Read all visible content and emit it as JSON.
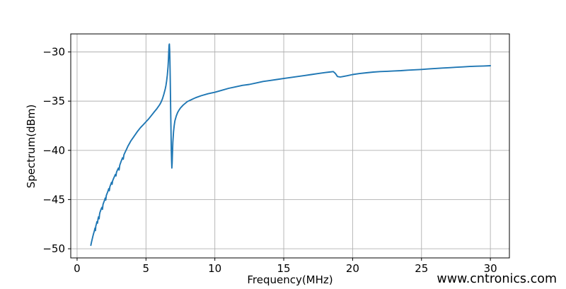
{
  "page": {
    "background": "#ffffff"
  },
  "watermark": {
    "text": "www.cntronics.com",
    "color": "#b7e3b6"
  },
  "chart_data": {
    "type": "line",
    "title": "",
    "xlabel": "Frequency(MHz)",
    "ylabel": "Spectrum(dBm)",
    "xlim": [
      -0.46,
      31.38
    ],
    "ylim": [
      -50.93,
      -28.17
    ],
    "x_ticks": [
      0,
      5,
      10,
      15,
      20,
      25,
      30
    ],
    "y_ticks": [
      -30,
      -35,
      -40,
      -45,
      -50
    ],
    "grid": true,
    "legend": "none",
    "line_color": "#1f77b4",
    "grid_color": "#b0b0b0",
    "spine_color": "#000000",
    "series": [
      {
        "name": "spectrum",
        "points": [
          [
            1.0,
            -49.65
          ],
          [
            1.05,
            -49.3
          ],
          [
            1.1,
            -49.0
          ],
          [
            1.15,
            -48.7
          ],
          [
            1.2,
            -48.45
          ],
          [
            1.25,
            -48.2
          ],
          [
            1.3,
            -47.9
          ],
          [
            1.33,
            -48.15
          ],
          [
            1.36,
            -47.7
          ],
          [
            1.4,
            -47.5
          ],
          [
            1.44,
            -47.25
          ],
          [
            1.48,
            -47.4
          ],
          [
            1.52,
            -46.95
          ],
          [
            1.56,
            -46.75
          ],
          [
            1.6,
            -46.95
          ],
          [
            1.63,
            -46.5
          ],
          [
            1.66,
            -46.3
          ],
          [
            1.7,
            -46.15
          ],
          [
            1.75,
            -45.95
          ],
          [
            1.8,
            -45.8
          ],
          [
            1.84,
            -46.0
          ],
          [
            1.88,
            -45.5
          ],
          [
            1.92,
            -45.35
          ],
          [
            1.96,
            -45.2
          ],
          [
            2.0,
            -45.05
          ],
          [
            2.04,
            -44.85
          ],
          [
            2.08,
            -45.05
          ],
          [
            2.12,
            -44.6
          ],
          [
            2.16,
            -44.45
          ],
          [
            2.2,
            -44.3
          ],
          [
            2.25,
            -44.1
          ],
          [
            2.3,
            -43.9
          ],
          [
            2.34,
            -44.1
          ],
          [
            2.38,
            -43.7
          ],
          [
            2.42,
            -43.55
          ],
          [
            2.46,
            -43.4
          ],
          [
            2.5,
            -43.25
          ],
          [
            2.54,
            -43.45
          ],
          [
            2.58,
            -43.1
          ],
          [
            2.62,
            -42.95
          ],
          [
            2.7,
            -42.7
          ],
          [
            2.78,
            -42.45
          ],
          [
            2.82,
            -42.6
          ],
          [
            2.86,
            -42.25
          ],
          [
            2.9,
            -42.1
          ],
          [
            2.95,
            -41.95
          ],
          [
            3.0,
            -41.8
          ],
          [
            3.05,
            -42.0
          ],
          [
            3.1,
            -41.5
          ],
          [
            3.2,
            -41.1
          ],
          [
            3.3,
            -40.75
          ],
          [
            3.35,
            -40.9
          ],
          [
            3.4,
            -40.45
          ],
          [
            3.5,
            -40.15
          ],
          [
            3.6,
            -39.85
          ],
          [
            3.7,
            -39.55
          ],
          [
            3.8,
            -39.3
          ],
          [
            3.9,
            -39.05
          ],
          [
            4.0,
            -38.85
          ],
          [
            4.2,
            -38.45
          ],
          [
            4.4,
            -38.05
          ],
          [
            4.6,
            -37.7
          ],
          [
            4.8,
            -37.4
          ],
          [
            5.0,
            -37.1
          ],
          [
            5.2,
            -36.8
          ],
          [
            5.4,
            -36.45
          ],
          [
            5.6,
            -36.1
          ],
          [
            5.8,
            -35.75
          ],
          [
            6.0,
            -35.35
          ],
          [
            6.1,
            -35.1
          ],
          [
            6.2,
            -34.75
          ],
          [
            6.3,
            -34.3
          ],
          [
            6.4,
            -33.75
          ],
          [
            6.45,
            -33.4
          ],
          [
            6.5,
            -32.95
          ],
          [
            6.55,
            -32.35
          ],
          [
            6.6,
            -31.5
          ],
          [
            6.63,
            -30.75
          ],
          [
            6.66,
            -29.85
          ],
          [
            6.68,
            -29.3
          ],
          [
            6.7,
            -29.2
          ],
          [
            6.72,
            -29.8
          ],
          [
            6.74,
            -31.0
          ],
          [
            6.76,
            -32.7
          ],
          [
            6.78,
            -34.7
          ],
          [
            6.8,
            -36.7
          ],
          [
            6.82,
            -38.5
          ],
          [
            6.84,
            -39.9
          ],
          [
            6.86,
            -41.0
          ],
          [
            6.88,
            -41.8
          ],
          [
            6.9,
            -41.3
          ],
          [
            6.92,
            -40.4
          ],
          [
            6.95,
            -39.2
          ],
          [
            7.0,
            -38.1
          ],
          [
            7.05,
            -37.5
          ],
          [
            7.1,
            -37.0
          ],
          [
            7.2,
            -36.5
          ],
          [
            7.3,
            -36.15
          ],
          [
            7.4,
            -35.9
          ],
          [
            7.5,
            -35.7
          ],
          [
            7.7,
            -35.4
          ],
          [
            8.0,
            -35.05
          ],
          [
            8.3,
            -34.85
          ],
          [
            8.6,
            -34.65
          ],
          [
            9.0,
            -34.45
          ],
          [
            9.5,
            -34.25
          ],
          [
            10.0,
            -34.1
          ],
          [
            10.5,
            -33.9
          ],
          [
            11.0,
            -33.7
          ],
          [
            11.5,
            -33.55
          ],
          [
            12.0,
            -33.4
          ],
          [
            12.5,
            -33.3
          ],
          [
            13.0,
            -33.15
          ],
          [
            13.5,
            -33.0
          ],
          [
            14.0,
            -32.9
          ],
          [
            14.5,
            -32.8
          ],
          [
            15.0,
            -32.7
          ],
          [
            15.5,
            -32.6
          ],
          [
            16.0,
            -32.5
          ],
          [
            16.5,
            -32.4
          ],
          [
            17.0,
            -32.3
          ],
          [
            17.5,
            -32.2
          ],
          [
            18.0,
            -32.1
          ],
          [
            18.3,
            -32.05
          ],
          [
            18.6,
            -32.0
          ],
          [
            18.75,
            -32.2
          ],
          [
            18.9,
            -32.5
          ],
          [
            19.1,
            -32.55
          ],
          [
            19.3,
            -32.5
          ],
          [
            19.6,
            -32.42
          ],
          [
            20.0,
            -32.3
          ],
          [
            20.5,
            -32.2
          ],
          [
            21.0,
            -32.12
          ],
          [
            21.5,
            -32.05
          ],
          [
            22.0,
            -32.0
          ],
          [
            22.5,
            -31.97
          ],
          [
            23.0,
            -31.93
          ],
          [
            23.5,
            -31.9
          ],
          [
            24.0,
            -31.85
          ],
          [
            24.5,
            -31.82
          ],
          [
            25.0,
            -31.78
          ],
          [
            25.5,
            -31.73
          ],
          [
            26.0,
            -31.68
          ],
          [
            26.5,
            -31.64
          ],
          [
            27.0,
            -31.6
          ],
          [
            27.5,
            -31.56
          ],
          [
            28.0,
            -31.52
          ],
          [
            28.5,
            -31.48
          ],
          [
            29.0,
            -31.45
          ],
          [
            29.5,
            -31.43
          ],
          [
            30.0,
            -31.4
          ]
        ]
      }
    ]
  }
}
